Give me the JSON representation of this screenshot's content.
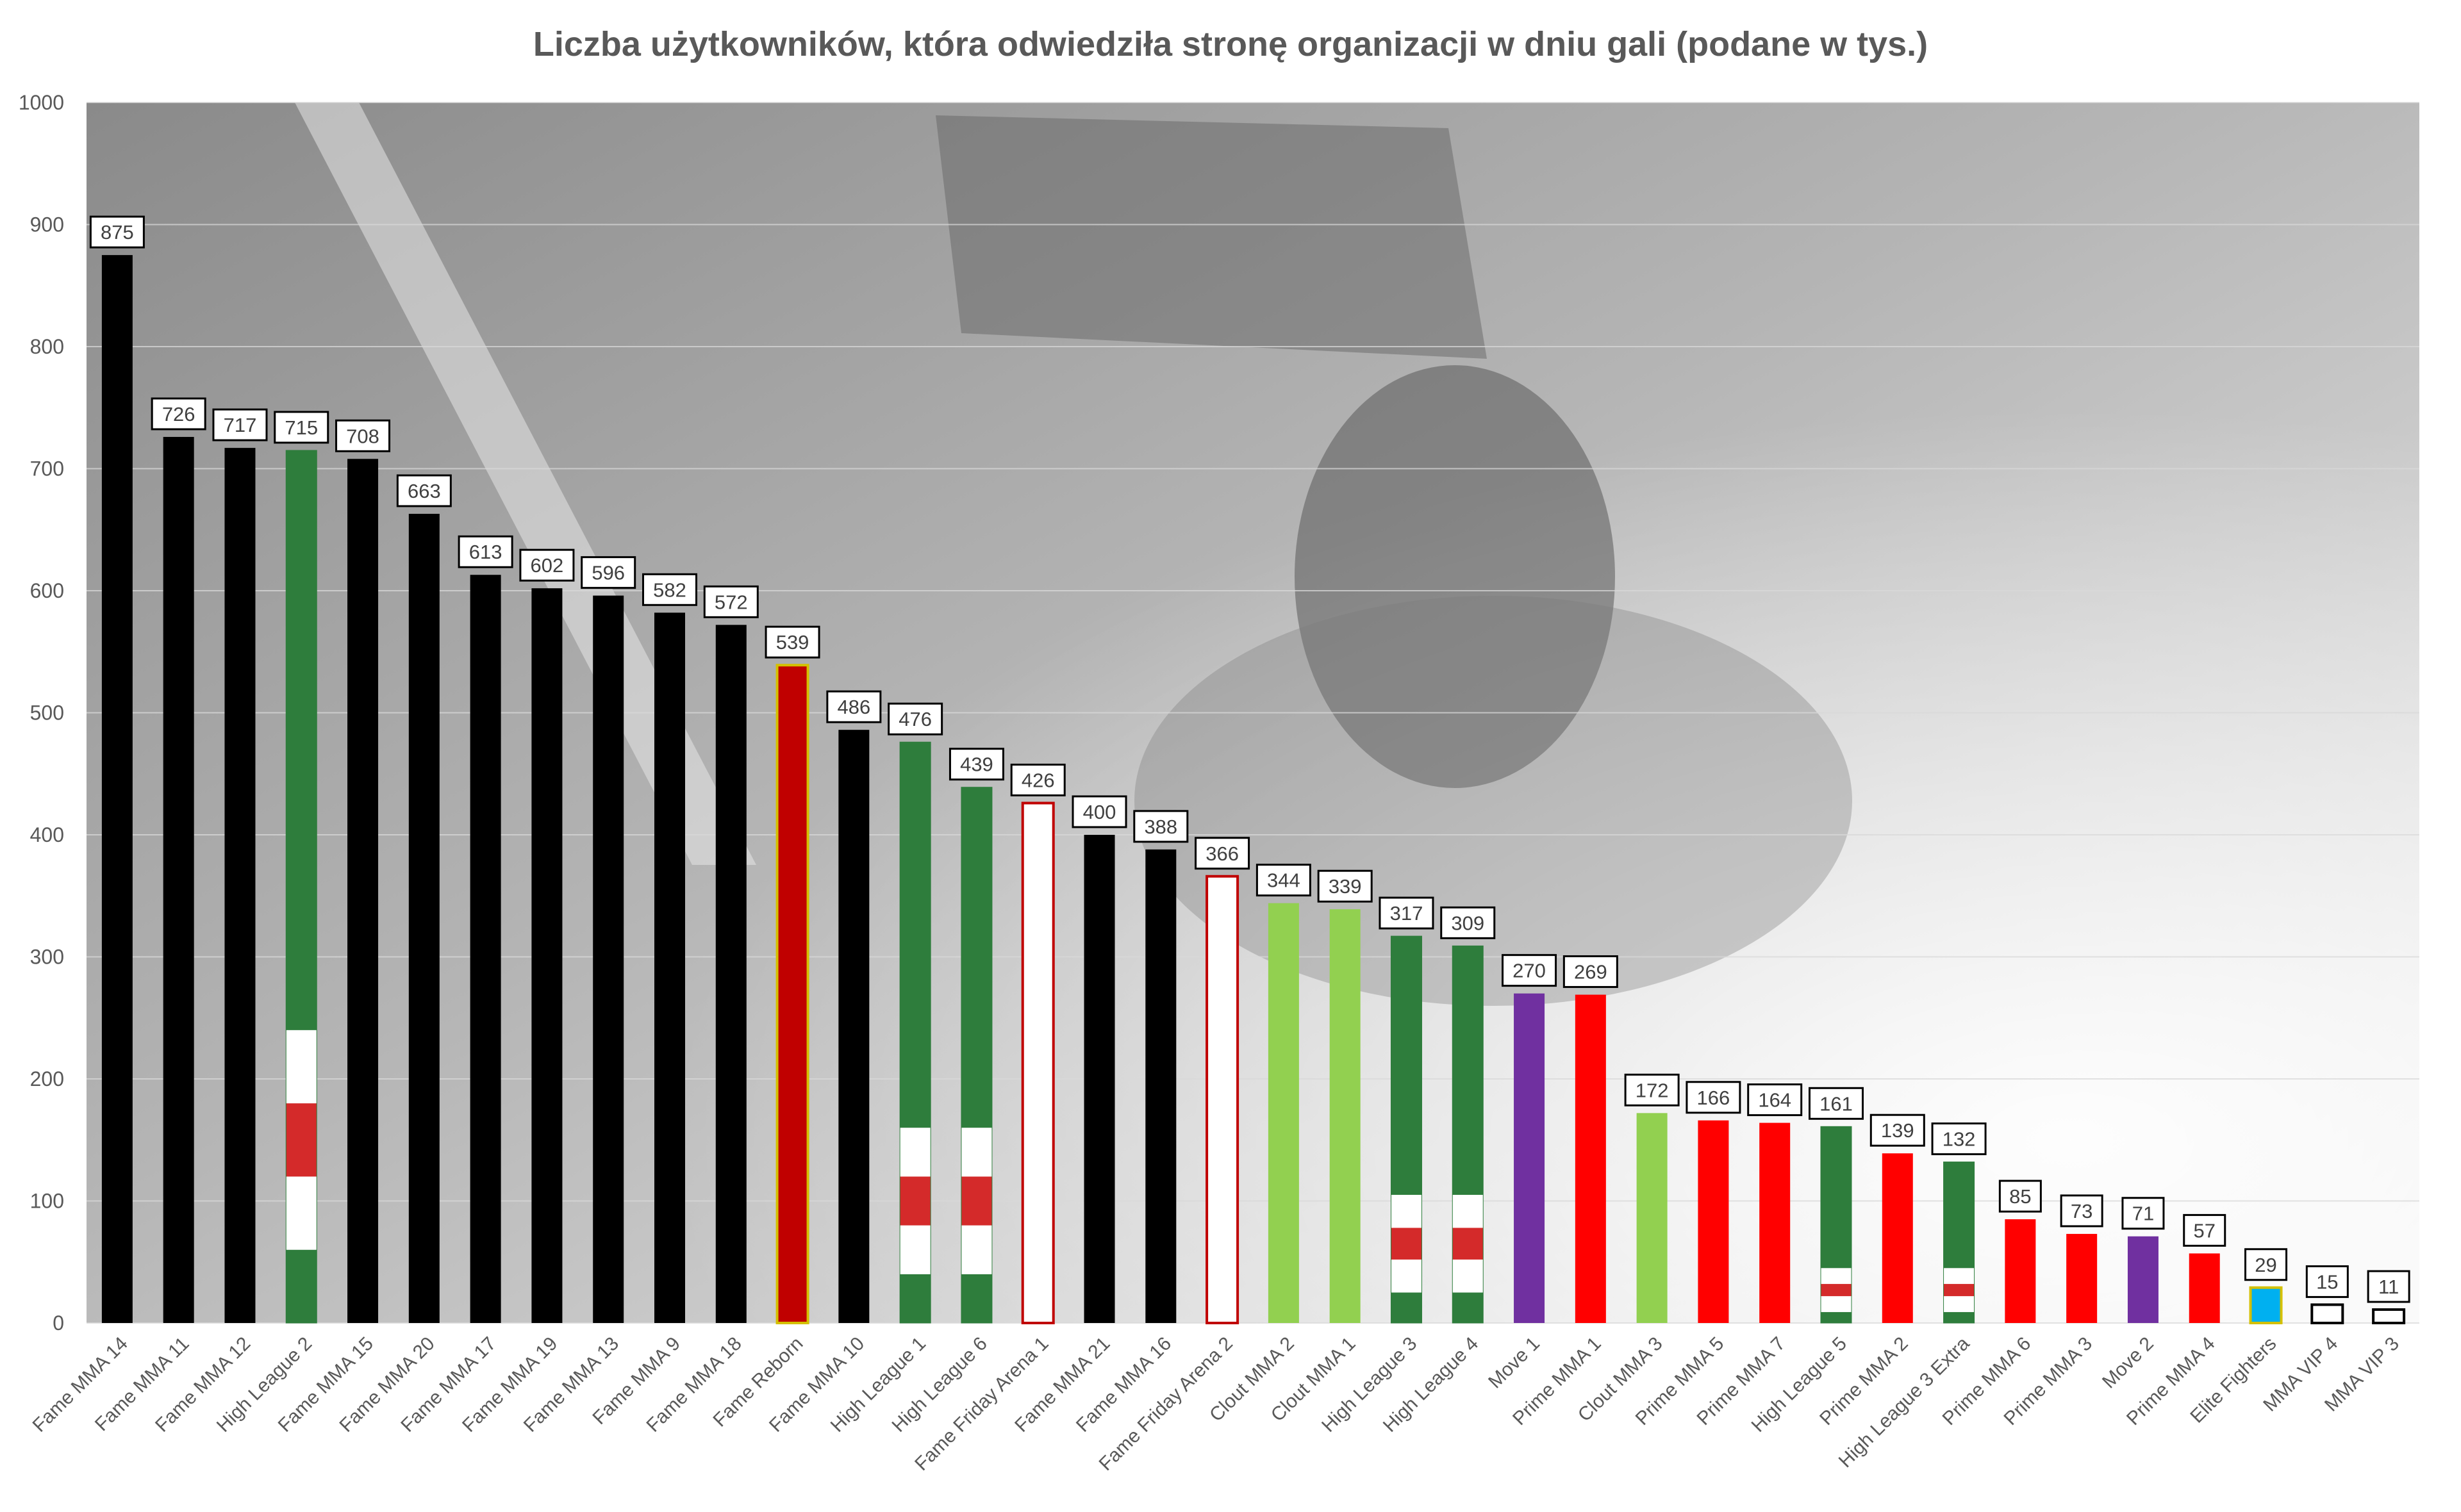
{
  "chart_data": {
    "type": "bar",
    "title": "Liczba użytkowników, która odwiedziła stronę organizacji w dniu gali (podane w tys.)",
    "xlabel": "",
    "ylabel": "",
    "ylim": [
      0,
      1000
    ],
    "yticks": [
      0,
      100,
      200,
      300,
      400,
      500,
      600,
      700,
      800,
      900,
      1000
    ],
    "grid": true,
    "legend": "none",
    "background": "grayscale photograph behind the plot area",
    "categories": [
      "Fame MMA 14",
      "Fame MMA 11",
      "Fame MMA 12",
      "High League 2",
      "Fame MMA 15",
      "Fame MMA 20",
      "Fame MMA 17",
      "Fame MMA 19",
      "Fame MMA 13",
      "Fame MMA 9",
      "Fame MMA 18",
      "Fame Reborn",
      "Fame MMA 10",
      "High League 1",
      "High League 6",
      "Fame Friday Arena 1",
      "Fame MMA 21",
      "Fame MMA 16",
      "Fame Friday Arena 2",
      "Clout MMA 2",
      "Clout MMA 1",
      "High League 3",
      "High League 4",
      "Move 1",
      "Prime MMA 1",
      "Clout MMA 3",
      "Prime MMA 5",
      "Prime MMA 7",
      "High League 5",
      "Prime MMA 2",
      "High League 3 Extra",
      "Prime MMA 6",
      "Prime MMA 3",
      "Move 2",
      "Prime MMA 4",
      "Elite Fighters",
      "MMA VIP 4",
      "MMA VIP 3"
    ],
    "values": [
      875,
      726,
      717,
      715,
      708,
      663,
      613,
      602,
      596,
      582,
      572,
      539,
      486,
      476,
      439,
      426,
      400,
      388,
      366,
      344,
      339,
      317,
      309,
      270,
      269,
      172,
      166,
      164,
      161,
      139,
      132,
      85,
      73,
      71,
      57,
      29,
      15,
      11
    ],
    "bar_styles": [
      "black",
      "black",
      "black",
      "highleague",
      "black",
      "black",
      "black",
      "black",
      "black",
      "black",
      "black",
      "fame_reborn",
      "black",
      "highleague",
      "highleague",
      "white_red",
      "black",
      "black",
      "white_red",
      "lightgreen",
      "lightgreen",
      "highleague",
      "highleague",
      "purple",
      "red",
      "lightgreen",
      "red",
      "red",
      "highleague",
      "red",
      "highleague",
      "red",
      "red",
      "purple",
      "red",
      "blue",
      "white_black",
      "white_black"
    ],
    "colors": {
      "black": "#000000",
      "red": "#ff0000",
      "dark_red": "#c00000",
      "dark_green": "#2e7d3c",
      "stripe_red": "#d42a2a",
      "light_green": "#92d050",
      "purple": "#7030a0",
      "blue": "#00b0f0",
      "yellow_outline": "#d4c000",
      "white": "#ffffff",
      "grid": "#d9d9d9",
      "axis_text": "#595959"
    }
  }
}
